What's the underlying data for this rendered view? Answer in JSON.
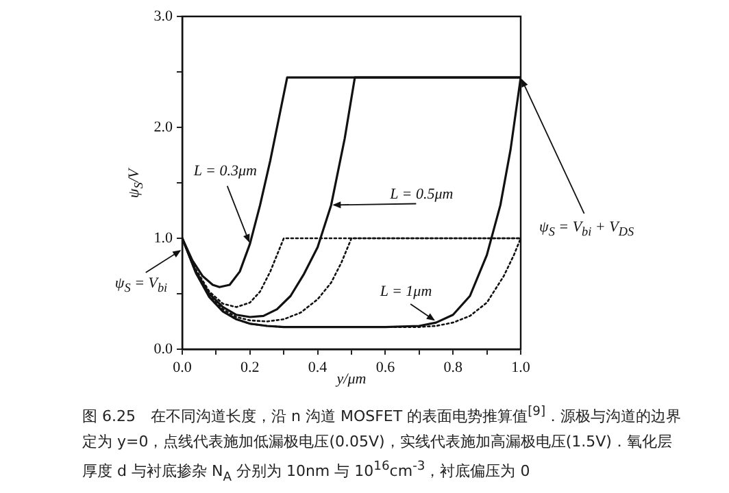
{
  "chart_data": {
    "type": "line",
    "xlabel": "y/μm",
    "ylabel": "ψ$_{S}$/V",
    "marker": "none",
    "xlim": [
      0,
      1.0
    ],
    "ylim": [
      0,
      3.0
    ],
    "xticks": [
      {
        "value": 0,
        "label": "0.0"
      },
      {
        "value": 0.1,
        "label": null
      },
      {
        "value": 0.2,
        "label": "0.2"
      },
      {
        "value": 0.3,
        "label": null
      },
      {
        "value": 0.4,
        "label": "0.4"
      },
      {
        "value": 0.5,
        "label": null
      },
      {
        "value": 0.6,
        "label": "0.6"
      },
      {
        "value": 0.7,
        "label": null
      },
      {
        "value": 0.8,
        "label": "0.8"
      },
      {
        "value": 0.9,
        "label": null
      },
      {
        "value": 1.0,
        "label": "1.0"
      }
    ],
    "yticks": [
      {
        "value": 0,
        "label": "0.0"
      },
      {
        "value": 0.5,
        "label": null
      },
      {
        "value": 1.0,
        "label": "1.0"
      },
      {
        "value": 1.5,
        "label": null
      },
      {
        "value": 2.0,
        "label": "2.0"
      },
      {
        "value": 2.5,
        "label": null
      },
      {
        "value": 3.0,
        "label": "3.0"
      }
    ],
    "series": [
      {
        "color": "#111111",
        "line_style": "solid",
        "x": [
          0,
          0.03,
          0.06,
          0.09,
          0.11,
          0.14,
          0.17,
          0.2,
          0.23,
          0.26,
          0.29,
          0.31,
          1.0
        ],
        "values": [
          1.0,
          0.8,
          0.66,
          0.58,
          0.56,
          0.58,
          0.7,
          0.95,
          1.3,
          1.7,
          2.15,
          2.45,
          2.45
        ]
      },
      {
        "color": "#111111",
        "line_style": "dotted",
        "x": [
          0,
          0.04,
          0.08,
          0.12,
          0.16,
          0.2,
          0.23,
          0.26,
          0.28,
          0.3,
          1.0
        ],
        "values": [
          1.0,
          0.72,
          0.52,
          0.41,
          0.38,
          0.42,
          0.52,
          0.7,
          0.85,
          1.0,
          1.0
        ]
      },
      {
        "color": "#111111",
        "line_style": "solid",
        "x": [
          0,
          0.04,
          0.08,
          0.12,
          0.16,
          0.2,
          0.24,
          0.28,
          0.32,
          0.36,
          0.4,
          0.44,
          0.48,
          0.51,
          1.0
        ],
        "values": [
          1.0,
          0.7,
          0.5,
          0.38,
          0.31,
          0.29,
          0.3,
          0.36,
          0.48,
          0.68,
          0.92,
          1.3,
          1.9,
          2.45,
          2.45
        ]
      },
      {
        "color": "#111111",
        "line_style": "dotted",
        "x": [
          0,
          0.04,
          0.08,
          0.12,
          0.16,
          0.2,
          0.25,
          0.3,
          0.35,
          0.4,
          0.44,
          0.47,
          0.5,
          1.0
        ],
        "values": [
          1.0,
          0.7,
          0.49,
          0.36,
          0.29,
          0.26,
          0.25,
          0.27,
          0.33,
          0.45,
          0.6,
          0.78,
          1.0,
          1.0
        ]
      },
      {
        "color": "#111111",
        "line_style": "solid",
        "x": [
          0,
          0.04,
          0.08,
          0.12,
          0.16,
          0.2,
          0.25,
          0.3,
          0.4,
          0.5,
          0.6,
          0.7,
          0.75,
          0.8,
          0.85,
          0.9,
          0.94,
          0.97,
          1.0
        ],
        "values": [
          1.0,
          0.69,
          0.47,
          0.34,
          0.27,
          0.23,
          0.21,
          0.2,
          0.2,
          0.2,
          0.2,
          0.21,
          0.24,
          0.31,
          0.48,
          0.85,
          1.3,
          1.8,
          2.45
        ]
      },
      {
        "color": "#111111",
        "line_style": "dotted",
        "x": [
          0,
          0.04,
          0.08,
          0.12,
          0.16,
          0.2,
          0.25,
          0.3,
          0.4,
          0.5,
          0.6,
          0.7,
          0.75,
          0.8,
          0.85,
          0.9,
          0.95,
          0.98,
          1.0
        ],
        "values": [
          1.0,
          0.69,
          0.47,
          0.34,
          0.27,
          0.23,
          0.21,
          0.2,
          0.2,
          0.2,
          0.2,
          0.2,
          0.21,
          0.24,
          0.3,
          0.42,
          0.66,
          0.85,
          1.0
        ]
      }
    ],
    "annotations": [
      {
        "text": "L = 0.3μm",
        "x": 0.2,
        "y": 0.95
      },
      {
        "text": "L = 0.5μm",
        "x": 0.44,
        "y": 1.3
      },
      {
        "text": "L = 1μm",
        "x": 0.75,
        "y": 0.25
      },
      {
        "text": "ψ$_{S}$ = V$_{bi}$",
        "x": 0,
        "y": 0.9
      },
      {
        "text": "ψ$_{S}$ = V$_{bi}$ + V$_{DS}$",
        "x": 1.0,
        "y": 2.45
      },
      "图 6.25　在不同沟道长度，沿 n 沟道 MOSFET 的表面电势推算值$^{[9]}$．源极与沟道的边界定为 y=0，点线代表施加低漏极电压(0.05V)，实线代表施加高漏极电压(1.5V)．氧化层厚度 d 与衬底掺杂 N$_{A}$ 分别为 10nm 与 10$^{16}$cm$^{-3}$，衬底偏压为 0"
    ]
  }
}
